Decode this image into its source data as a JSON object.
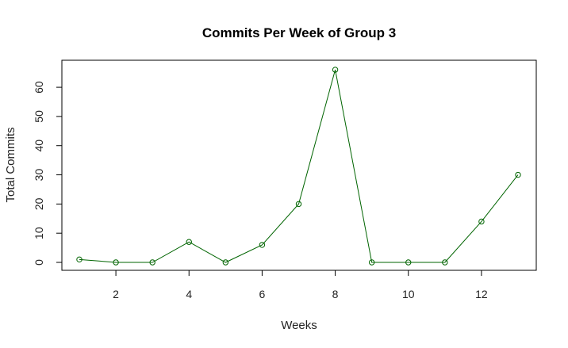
{
  "chart_data": {
    "type": "line",
    "title": "Commits Per Week of Group 3",
    "xlabel": "Weeks",
    "ylabel": "Total Commits",
    "x": [
      1,
      2,
      3,
      4,
      5,
      6,
      7,
      8,
      9,
      10,
      11,
      12,
      13
    ],
    "series": [
      {
        "values": [
          1,
          0,
          0,
          7,
          0,
          6,
          20,
          66,
          0,
          0,
          0,
          14,
          30
        ]
      }
    ],
    "xlim": [
      1,
      13
    ],
    "ylim": [
      0,
      66
    ],
    "x_ticks": [
      2,
      4,
      6,
      8,
      10,
      12
    ],
    "y_ticks": [
      0,
      10,
      20,
      30,
      40,
      50,
      60
    ],
    "marker": "open-circle",
    "line_color": "#006400",
    "grid": false,
    "legend": "none"
  }
}
